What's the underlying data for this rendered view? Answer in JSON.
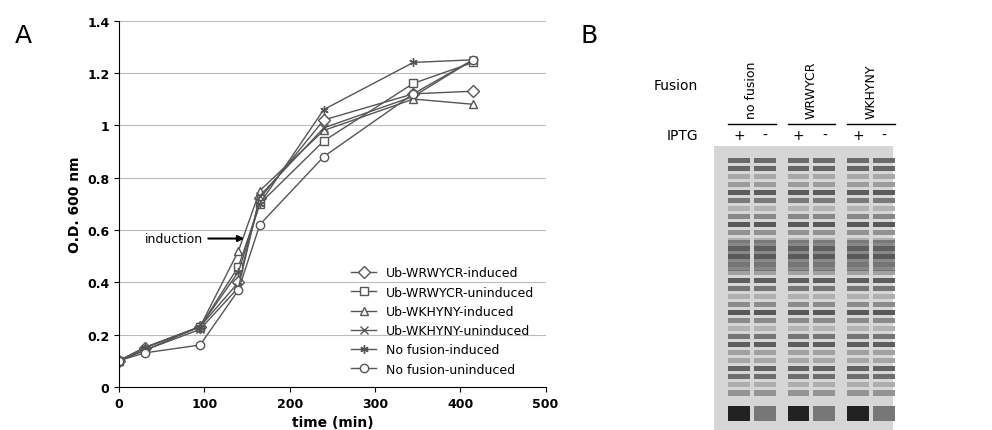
{
  "panel_labels": [
    "A",
    "B"
  ],
  "chart_data": {
    "type": "line",
    "x": [
      0,
      30,
      95,
      140,
      165,
      240,
      345,
      415
    ],
    "series": [
      {
        "name": "Ub-WRWYCR-induced",
        "color": "#555555",
        "marker": "diamond",
        "values": [
          0.1,
          0.15,
          0.23,
          0.4,
          0.72,
          1.02,
          1.12,
          1.13
        ]
      },
      {
        "name": "Ub-WRWYCR-uninduced",
        "color": "#555555",
        "marker": "square",
        "values": [
          0.1,
          0.14,
          0.23,
          0.46,
          0.7,
          0.94,
          1.16,
          1.24
        ]
      },
      {
        "name": "Ub-WKHYNY-induced",
        "color": "#555555",
        "marker": "triangle",
        "values": [
          0.1,
          0.15,
          0.23,
          0.52,
          0.75,
          0.98,
          1.1,
          1.08
        ]
      },
      {
        "name": "Ub-WKHYNY-uninduced",
        "color": "#555555",
        "marker": "x",
        "values": [
          0.1,
          0.14,
          0.22,
          0.38,
          0.73,
          0.99,
          1.11,
          1.25
        ]
      },
      {
        "name": "No fusion-induced",
        "color": "#555555",
        "marker": "asterisk",
        "values": [
          0.1,
          0.15,
          0.23,
          0.44,
          0.7,
          1.06,
          1.24,
          1.25
        ]
      },
      {
        "name": "No fusion-uninduced",
        "color": "#555555",
        "marker": "circle",
        "values": [
          0.1,
          0.13,
          0.16,
          0.37,
          0.62,
          0.88,
          1.12,
          1.25
        ]
      }
    ],
    "x_label": "time (min)",
    "y_label": "O.D. 600 nm",
    "xlim": [
      0,
      500
    ],
    "xticks": [
      0,
      100,
      200,
      300,
      400,
      500
    ],
    "ylim": [
      0,
      1.4
    ],
    "yticks": [
      0,
      0.2,
      0.4,
      0.6,
      0.8,
      1,
      1.2,
      1.4
    ],
    "grid": "y",
    "legend": "lower right",
    "annotations": [
      "induction"
    ]
  },
  "gel": {
    "row_labels": [
      "Fusion",
      "IPTG"
    ],
    "groups": [
      {
        "name": "no fusion",
        "lanes": [
          "+",
          "-"
        ]
      },
      {
        "name": "WRWYCR",
        "lanes": [
          "+",
          "-"
        ]
      },
      {
        "name": "WKHYNY",
        "lanes": [
          "+",
          "-"
        ]
      }
    ]
  }
}
